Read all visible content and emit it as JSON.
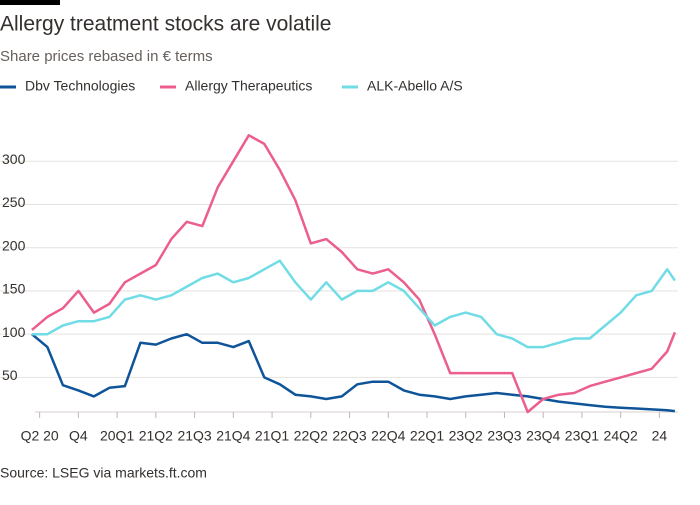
{
  "chart_data": {
    "type": "line",
    "title": "Allergy treatment stocks are volatile",
    "subtitle": "Share prices rebased in € terms",
    "source": "Source: LSEG via markets.ft.com",
    "x": [
      2020.2,
      2020.3,
      2020.4,
      2020.5,
      2020.6,
      2020.7,
      2020.8,
      2020.9,
      2021.0,
      2021.1,
      2021.2,
      2021.3,
      2021.4,
      2021.5,
      2021.6,
      2021.7,
      2021.8,
      2021.9,
      2022.0,
      2022.1,
      2022.2,
      2022.3,
      2022.4,
      2022.5,
      2022.6,
      2022.7,
      2022.8,
      2022.9,
      2023.0,
      2023.1,
      2023.2,
      2023.3,
      2023.4,
      2023.5,
      2023.6,
      2023.7,
      2023.8,
      2023.9,
      2024.0,
      2024.1,
      2024.2,
      2024.3,
      2024.35
    ],
    "series": [
      {
        "name": "Dbv Technologies",
        "color": "#0f5499",
        "values": [
          100,
          85,
          41,
          35,
          28,
          38,
          40,
          90,
          88,
          95,
          100,
          90,
          90,
          85,
          92,
          50,
          42,
          30,
          28,
          25,
          28,
          42,
          45,
          45,
          35,
          30,
          28,
          25,
          28,
          30,
          32,
          30,
          28,
          25,
          22,
          20,
          18,
          16,
          15,
          14,
          13,
          12,
          11
        ]
      },
      {
        "name": "Allergy Therapeutics",
        "color": "#eb5e8d",
        "values": [
          105,
          120,
          130,
          150,
          125,
          135,
          160,
          170,
          180,
          210,
          230,
          225,
          270,
          300,
          330,
          320,
          290,
          255,
          205,
          210,
          195,
          175,
          170,
          175,
          160,
          140,
          100,
          55,
          55,
          55,
          55,
          55,
          10,
          25,
          30,
          32,
          40,
          45,
          50,
          55,
          60,
          80,
          102
        ]
      },
      {
        "name": "ALK-Abello A/S",
        "color": "#70dce6",
        "values": [
          100,
          100,
          110,
          115,
          115,
          120,
          140,
          145,
          140,
          145,
          155,
          165,
          170,
          160,
          165,
          175,
          185,
          160,
          140,
          160,
          140,
          150,
          150,
          160,
          150,
          130,
          110,
          120,
          125,
          120,
          100,
          95,
          85,
          85,
          90,
          95,
          95,
          110,
          125,
          145,
          150,
          175,
          162
        ]
      }
    ],
    "xlim": [
      2020.22,
      2024.37
    ],
    "xticks": [
      {
        "value": 2020.25,
        "label": "Q2 20"
      },
      {
        "value": 2020.5,
        "label": "Q4"
      },
      {
        "value": 2020.75,
        "label": "20Q1"
      },
      {
        "value": 2021.0,
        "label": "21Q2"
      },
      {
        "value": 2021.25,
        "label": "21Q3"
      },
      {
        "value": 2021.5,
        "label": "21Q4"
      },
      {
        "value": 2021.75,
        "label": "21Q1"
      },
      {
        "value": 2022.0,
        "label": "22Q2"
      },
      {
        "value": 2022.25,
        "label": "22Q3"
      },
      {
        "value": 2022.5,
        "label": "22Q4"
      },
      {
        "value": 2022.75,
        "label": "22Q1"
      },
      {
        "value": 2023.0,
        "label": "23Q2"
      },
      {
        "value": 2023.25,
        "label": "23Q3"
      },
      {
        "value": 2023.5,
        "label": "23Q4"
      },
      {
        "value": 2023.75,
        "label": "23Q1"
      },
      {
        "value": 2024.0,
        "label": "24Q2"
      },
      {
        "value": 2024.25,
        "label": "24"
      }
    ],
    "ylim": [
      10,
      350
    ],
    "yticks": [
      50,
      100,
      150,
      200,
      250,
      300
    ],
    "grid": true
  }
}
